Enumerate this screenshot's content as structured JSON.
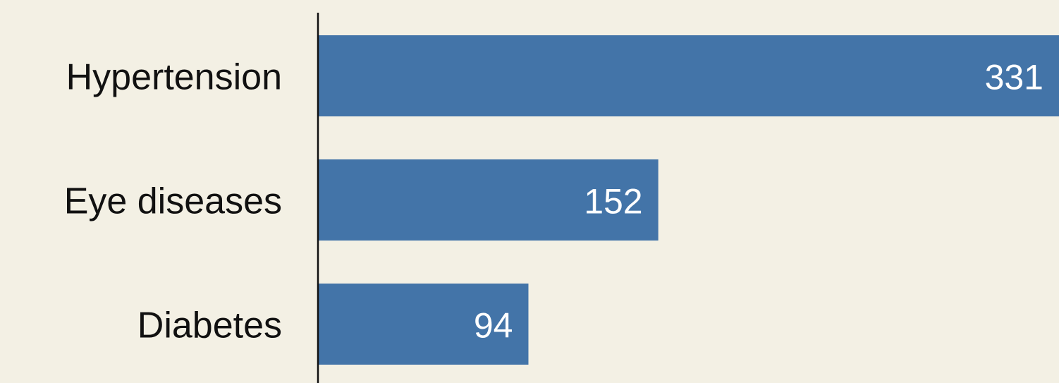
{
  "chart_data": {
    "type": "bar",
    "orientation": "horizontal",
    "categories": [
      "Hypertension",
      "Eye diseases",
      "Diabetes"
    ],
    "values": [
      331,
      152,
      94
    ],
    "color": "#4374a8"
  }
}
